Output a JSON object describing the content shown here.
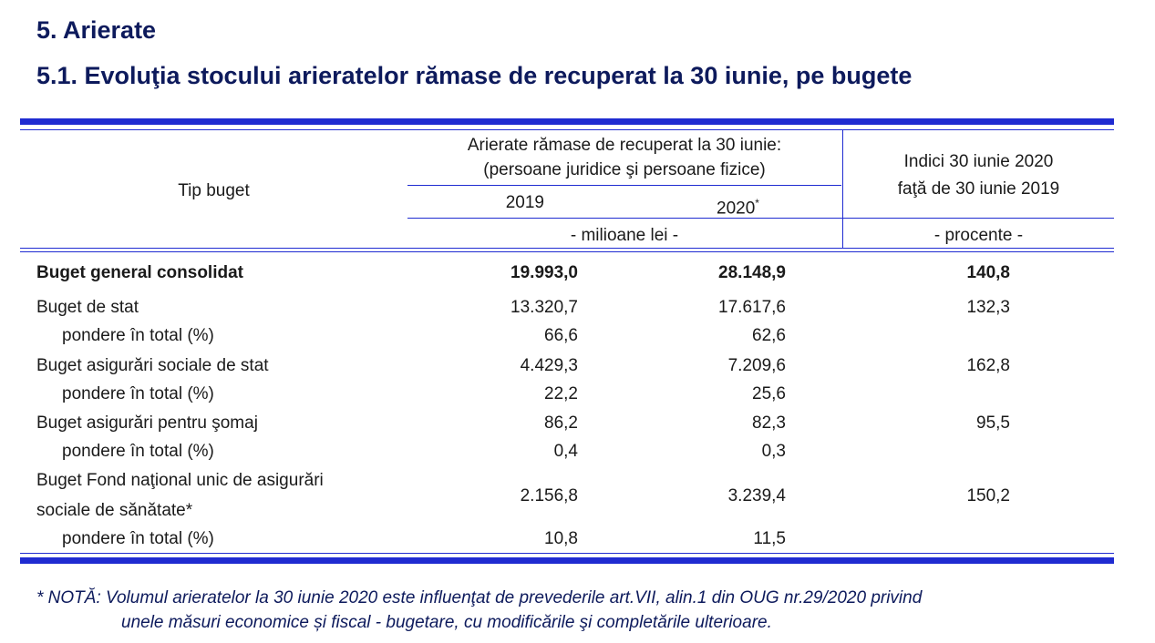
{
  "heading": "5. Arierate",
  "subheading": "5.1. Evoluţia stocului arieratelor rămase de recuperat la 30 iunie, pe bugete",
  "table": {
    "col_tip": "Tip buget",
    "group_header_line1": "Arierate rămase de recuperat la 30 iunie:",
    "group_header_line2": "(persoane juridice şi persoane fizice)",
    "year_2019": "2019",
    "year_2020": "2020",
    "year_2020_mark": "*",
    "unit_mil": "- milioane lei -",
    "indici_line1": "Indici 30 iunie 2020",
    "indici_line2": "faţă de 30 iunie 2019",
    "unit_pct": "- procente -",
    "rows": [
      {
        "label": "Buget general consolidat",
        "v2019": "19.993,0",
        "v2020": "28.148,9",
        "idx": "140,8"
      },
      {
        "label": "Buget de stat",
        "v2019": "13.320,7",
        "v2020": "17.617,6",
        "idx": "132,3"
      },
      {
        "label": "pondere în total (%)",
        "v2019": "66,6",
        "v2020": "62,6",
        "idx": ""
      },
      {
        "label": "Buget asigurări sociale de stat",
        "v2019": "4.429,3",
        "v2020": "7.209,6",
        "idx": "162,8"
      },
      {
        "label": "pondere în total (%)",
        "v2019": "22,2",
        "v2020": "25,6",
        "idx": ""
      },
      {
        "label": "Buget asigurări pentru şomaj",
        "v2019": "86,2",
        "v2020": "82,3",
        "idx": "95,5"
      },
      {
        "label": "pondere în total (%)",
        "v2019": "0,4",
        "v2020": "0,3",
        "idx": ""
      },
      {
        "label_line1": "Buget Fond naţional unic de asigurări",
        "label_line2": "sociale de sănătate*",
        "v2019": "2.156,8",
        "v2020": "3.239,4",
        "idx": "150,2"
      },
      {
        "label": "pondere în total (%)",
        "v2019": "10,8",
        "v2020": "11,5",
        "idx": ""
      }
    ]
  },
  "note_line1": "* NOTĂ: Volumul arieratelor la 30 iunie 2020 este influenţat de prevederile art.VII, alin.1 din OUG nr.29/2020 privind",
  "note_line2": "unele măsuri economice și fiscal - bugetare, cu modificările şi completările ulterioare."
}
